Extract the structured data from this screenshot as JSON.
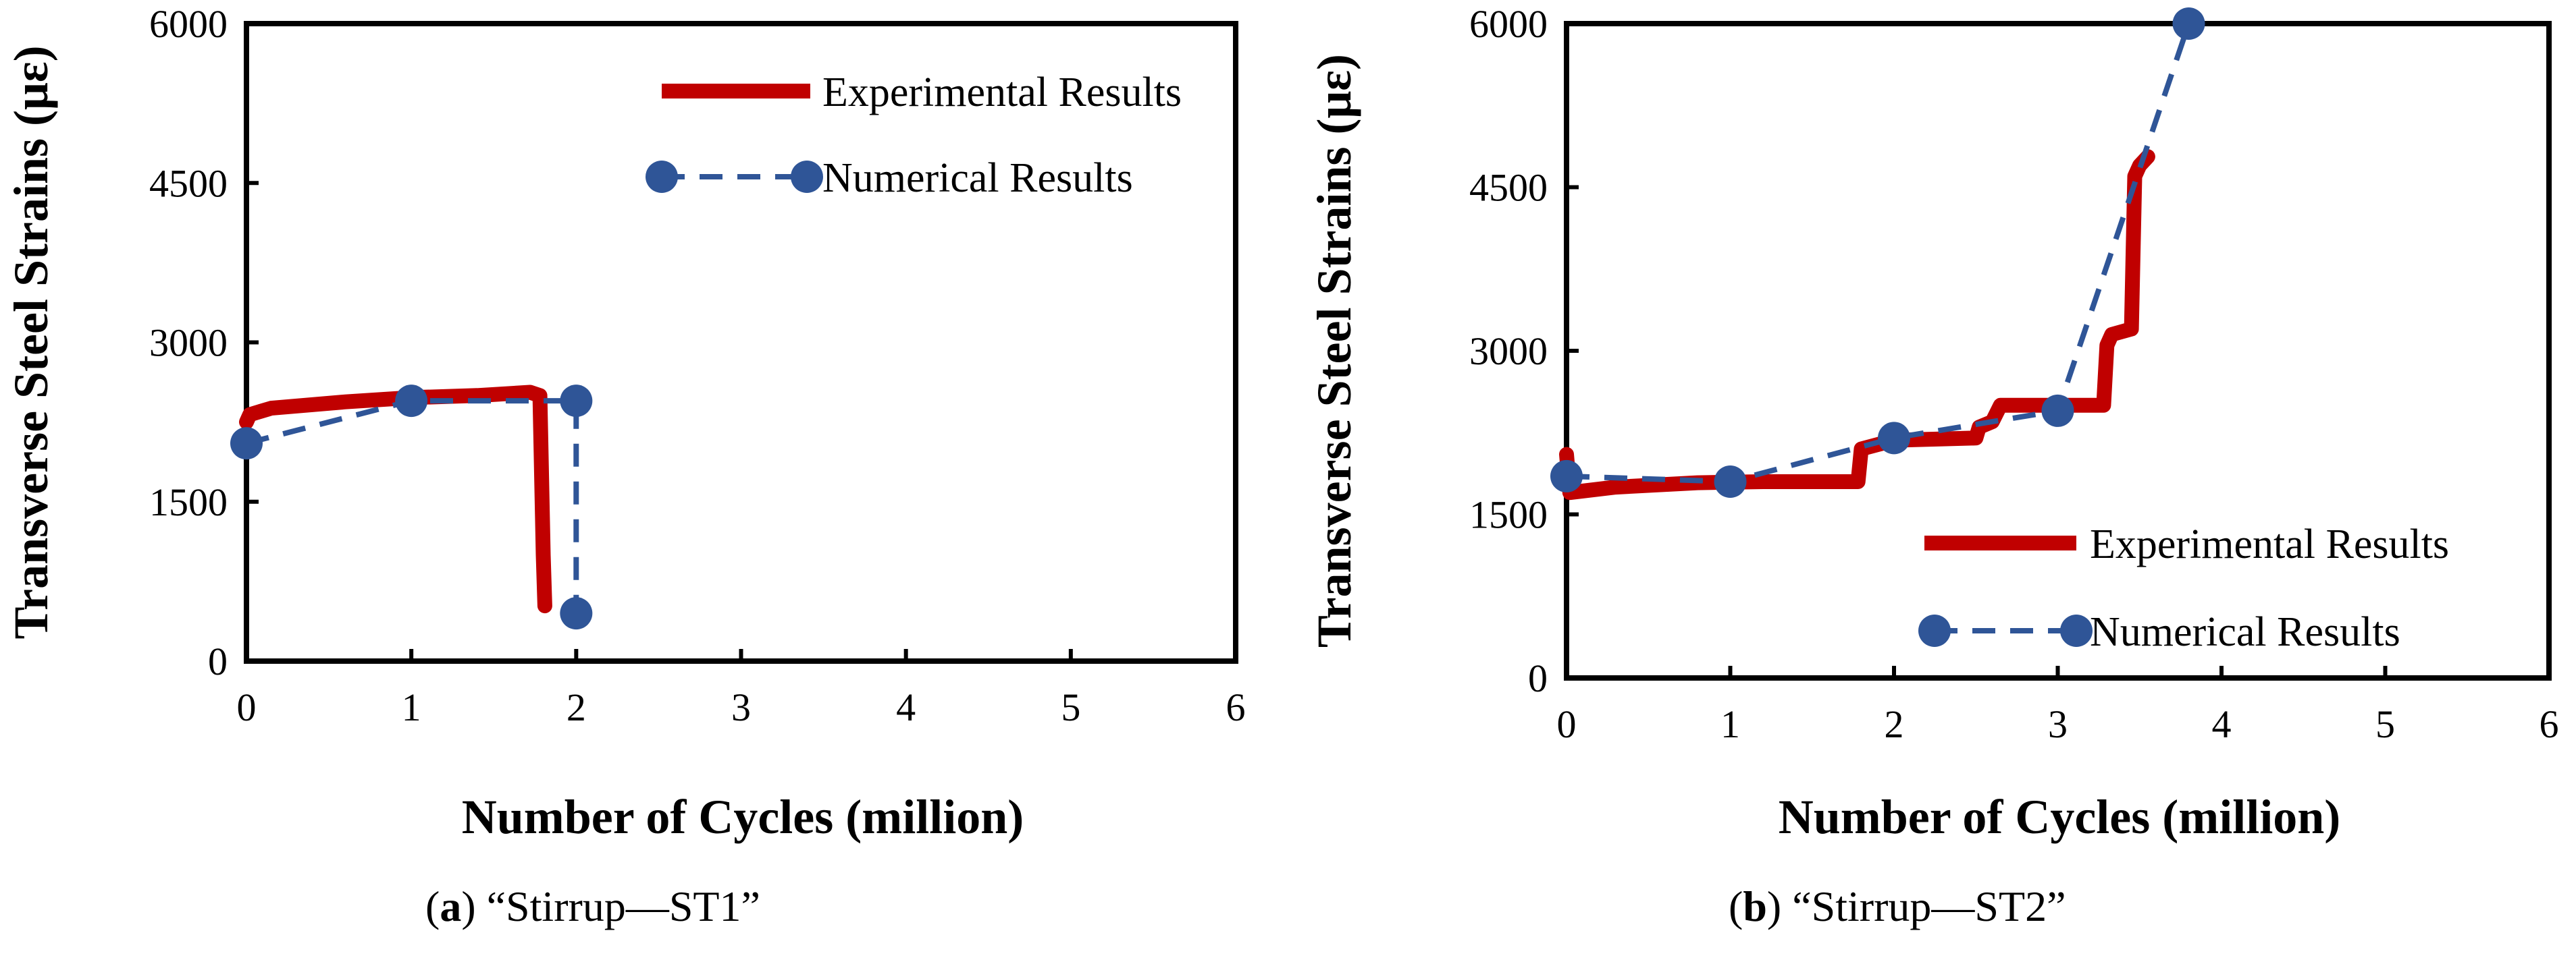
{
  "chart_data": [
    {
      "type": "line",
      "panel": "a",
      "caption_letter": "a",
      "caption_text": "“Stirrup—ST1”",
      "xlabel": "Number of Cycles (million)",
      "ylabel": "Transverse Steel Strains (με)",
      "xlim": [
        0,
        6
      ],
      "ylim": [
        0,
        6000
      ],
      "xticks": [
        "0",
        "1",
        "2",
        "3",
        "4",
        "5",
        "6"
      ],
      "yticks": [
        "0",
        "1500",
        "3000",
        "4500",
        "6000"
      ],
      "legend_position": "top-right",
      "series": [
        {
          "name": "Experimental Results",
          "style": "solid",
          "color": "#c00000",
          "x": [
            0,
            0.02,
            0.15,
            0.6,
            1.0,
            1.4,
            1.72,
            1.78,
            1.8,
            1.81
          ],
          "y": [
            2250,
            2320,
            2380,
            2440,
            2480,
            2500,
            2530,
            2500,
            1000,
            520
          ]
        },
        {
          "name": "Numerical Results",
          "style": "dashed",
          "color": "#2f5597",
          "x": [
            0,
            1,
            2,
            2
          ],
          "y": [
            2050,
            2450,
            2450,
            450
          ]
        }
      ]
    },
    {
      "type": "line",
      "panel": "b",
      "caption_letter": "b",
      "caption_text": "“Stirrup—ST2”",
      "xlabel": "Number of Cycles (million)",
      "ylabel": "Transverse Steel Strains (με)",
      "xlim": [
        0,
        6
      ],
      "ylim": [
        0,
        6000
      ],
      "xticks": [
        "0",
        "1",
        "2",
        "3",
        "4",
        "5",
        "6"
      ],
      "yticks": [
        "0",
        "1500",
        "3000",
        "4500",
        "6000"
      ],
      "legend_position": "center-right",
      "series": [
        {
          "name": "Experimental Results",
          "style": "solid",
          "color": "#c00000",
          "x": [
            0,
            0.02,
            0.3,
            0.8,
            1.2,
            1.78,
            1.8,
            2.0,
            2.5,
            2.52,
            2.6,
            2.65,
            3.0,
            3.28,
            3.3,
            3.33,
            3.45,
            3.47,
            3.5,
            3.55
          ],
          "y": [
            2050,
            1700,
            1750,
            1790,
            1800,
            1800,
            2100,
            2180,
            2200,
            2300,
            2350,
            2500,
            2500,
            2500,
            3050,
            3150,
            3200,
            4600,
            4700,
            4780
          ]
        },
        {
          "name": "Numerical Results",
          "style": "dashed",
          "color": "#2f5597",
          "x": [
            0,
            1,
            2,
            3,
            3.8
          ],
          "y": [
            1850,
            1800,
            2200,
            2450,
            6000
          ]
        }
      ]
    }
  ]
}
